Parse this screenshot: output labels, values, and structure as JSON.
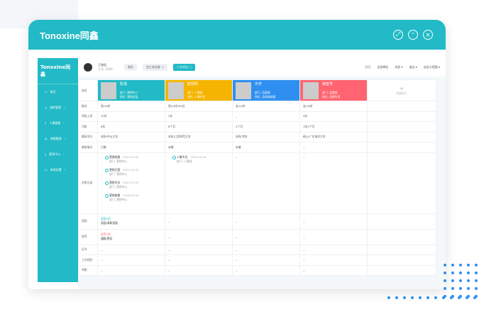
{
  "brand": {
    "name": "Tonoxine同鑫"
  },
  "window_controls": [
    "expand-icon",
    "collapse-icon",
    "close-icon"
  ],
  "sidebar": {
    "logo": "Tonoxine同鑫",
    "items": [
      {
        "label": "首页",
        "icon": "home-icon"
      },
      {
        "label": "组织管理",
        "icon": "org-icon"
      },
      {
        "label": "人事管理",
        "icon": "person-icon"
      },
      {
        "label": "考勤管理",
        "icon": "clock-icon"
      },
      {
        "label": "薪资中心",
        "icon": "wallet-icon"
      },
      {
        "label": "系统设置",
        "icon": "settings-icon"
      }
    ]
  },
  "toolbar": {
    "user": "王晓丽",
    "user_sub": "工号: 3564",
    "tabs": [
      {
        "label": "首页"
      },
      {
        "label": "员工花名册 ⓘ"
      },
      {
        "label": "人才对比 ⓘ"
      }
    ],
    "right": [
      "引引",
      "全部降低",
      "消息 ▾",
      "退出 ▾",
      "自定义视图 ▾"
    ]
  },
  "compare": {
    "label": "选员",
    "add_label": "添加员工",
    "people": [
      {
        "name": "陈语",
        "dept": "部门: 营销中心",
        "post": "岗位: 营销总监",
        "color": "#21bac6"
      },
      {
        "name": "欧阳阳",
        "dept": "部门: 人事部",
        "post": "岗位: 人事专员",
        "color": "#f5b400"
      },
      {
        "name": "许芳",
        "dept": "部门: 品质部",
        "post": "岗位: 品质部经理",
        "color": "#2f8ff0"
      },
      {
        "name": "韩智芳",
        "dept": "部门: 品牌部",
        "post": "岗位: 品牌专员",
        "color": "#ff6470"
      }
    ],
    "rows": [
      {
        "label": "概况",
        "values": [
          "男/36岁",
          "男/26岁/90后",
          "女/24岁",
          "女/28岁"
        ]
      },
      {
        "label": "驾龄上岗",
        "values": [
          "10年",
          "2年",
          "--",
          "4年"
        ]
      },
      {
        "label": "司龄",
        "values": [
          "8年",
          "6个月",
          "2个月",
          "1年2个月"
        ]
      },
      {
        "label": "最高学历",
        "values": [
          "本科/中山大学",
          "本科/江西师范大学",
          "本科/专科",
          "硕士/广东海洋大学"
        ]
      },
      {
        "label": "婚育情况",
        "values": [
          "已婚",
          "未婚",
          "未婚",
          "--"
        ]
      }
    ],
    "history_label": "任职记录",
    "history": [
      [
        {
          "title": "营销经理",
          "date": "2023-05-30",
          "dept": "部门: 营销中心"
        },
        {
          "title": "营销主管",
          "date": "2022-03-30",
          "dept": "部门: 营销中心"
        },
        {
          "title": "营销专员",
          "date": "2020-03-30",
          "dept": "部门: 营销中心"
        },
        {
          "title": "营销助理",
          "date": "2018-03-30",
          "dept": "部门: 营销中心"
        }
      ],
      [
        {
          "title": "人事专员",
          "date": "2020-05-30",
          "dept": "部门: 人事部"
        }
      ],
      [],
      []
    ],
    "reward": {
      "label": "奖励",
      "tag": "奖励1项",
      "text": "奖励/表彰奖励"
    },
    "penalty": {
      "label": "惩罚",
      "tag": "惩罚1项",
      "text": "通报/警告"
    },
    "tail_rows": [
      {
        "label": "证书"
      },
      {
        "label": "工作经验"
      },
      {
        "label": "考勤"
      }
    ],
    "empty": "--"
  }
}
